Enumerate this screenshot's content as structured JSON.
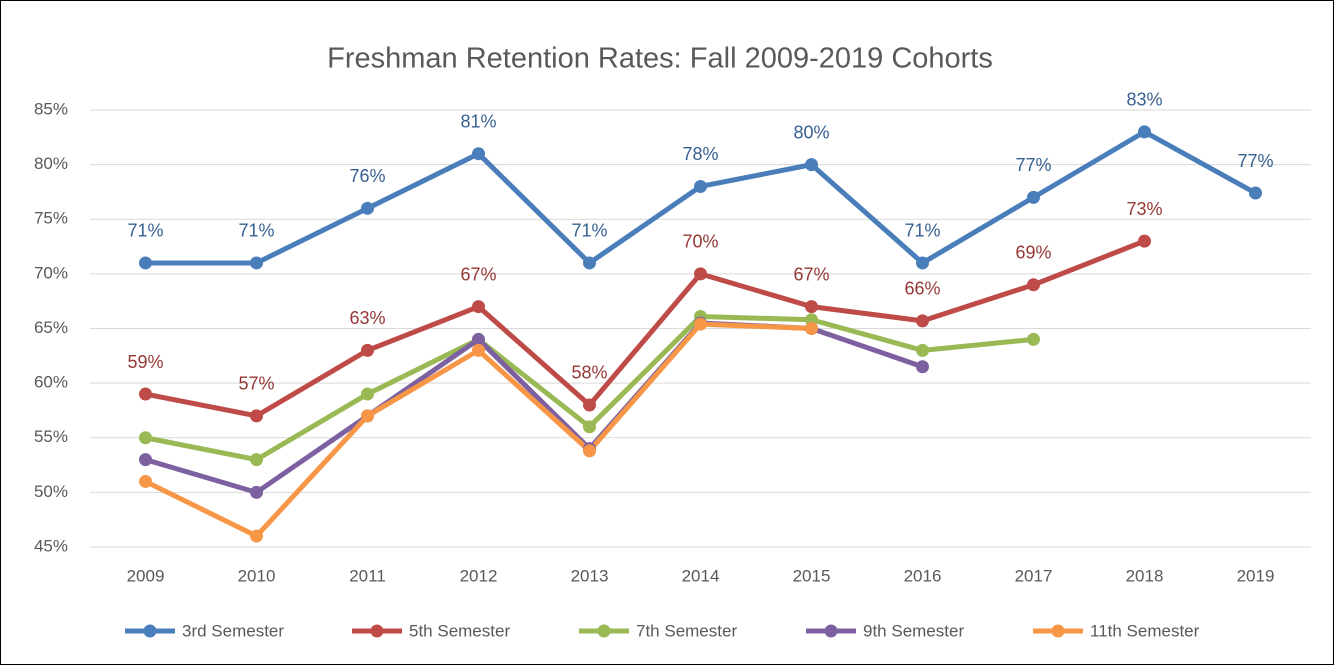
{
  "chart_data": {
    "type": "line",
    "title": "Freshman Retention Rates:  Fall 2009-2019 Cohorts",
    "categories": [
      "2009",
      "2010",
      "2011",
      "2012",
      "2013",
      "2014",
      "2015",
      "2016",
      "2017",
      "2018",
      "2019"
    ],
    "ylim": [
      45,
      85
    ],
    "yticks": [
      {
        "value": 45,
        "label": "45%"
      },
      {
        "value": 50,
        "label": "50%"
      },
      {
        "value": 55,
        "label": "55%"
      },
      {
        "value": 60,
        "label": "60%"
      },
      {
        "value": 65,
        "label": "65%"
      },
      {
        "value": 70,
        "label": "70%"
      },
      {
        "value": 75,
        "label": "75%"
      },
      {
        "value": 80,
        "label": "80%"
      },
      {
        "value": 85,
        "label": "85%"
      }
    ],
    "grid": true,
    "legend": "bottom",
    "series": [
      {
        "name": "3rd Semester",
        "color": "#4a7ebb",
        "label_color": "#376092",
        "values": [
          71,
          71,
          76,
          81,
          71,
          78,
          80,
          71,
          77,
          83,
          77.4
        ],
        "value_labels": [
          "71%",
          "71%",
          "76%",
          "81%",
          "71%",
          "78%",
          "80%",
          "71%",
          "77%",
          "83%",
          "77%"
        ]
      },
      {
        "name": "5th Semester",
        "color": "#be4b48",
        "label_color": "#953735",
        "values": [
          59,
          57,
          63,
          67,
          58,
          70,
          67,
          65.7,
          69,
          73,
          null
        ],
        "value_labels": [
          "59%",
          "57%",
          "63%",
          "67%",
          "58%",
          "70%",
          "67%",
          "66%",
          "69%",
          "73%",
          null
        ]
      },
      {
        "name": "7th Semester",
        "color": "#98b954",
        "values": [
          55,
          53,
          59,
          64,
          56,
          66.1,
          65.8,
          63,
          64,
          null,
          null
        ]
      },
      {
        "name": "9th Semester",
        "color": "#7d60a0",
        "values": [
          53,
          50,
          57,
          64,
          54,
          65.5,
          65,
          61.5,
          null,
          null,
          null
        ]
      },
      {
        "name": "11th Semester",
        "color": "#f79646",
        "values": [
          51,
          46,
          57,
          63,
          53.8,
          65.4,
          65,
          null,
          null,
          null,
          null
        ]
      }
    ]
  }
}
